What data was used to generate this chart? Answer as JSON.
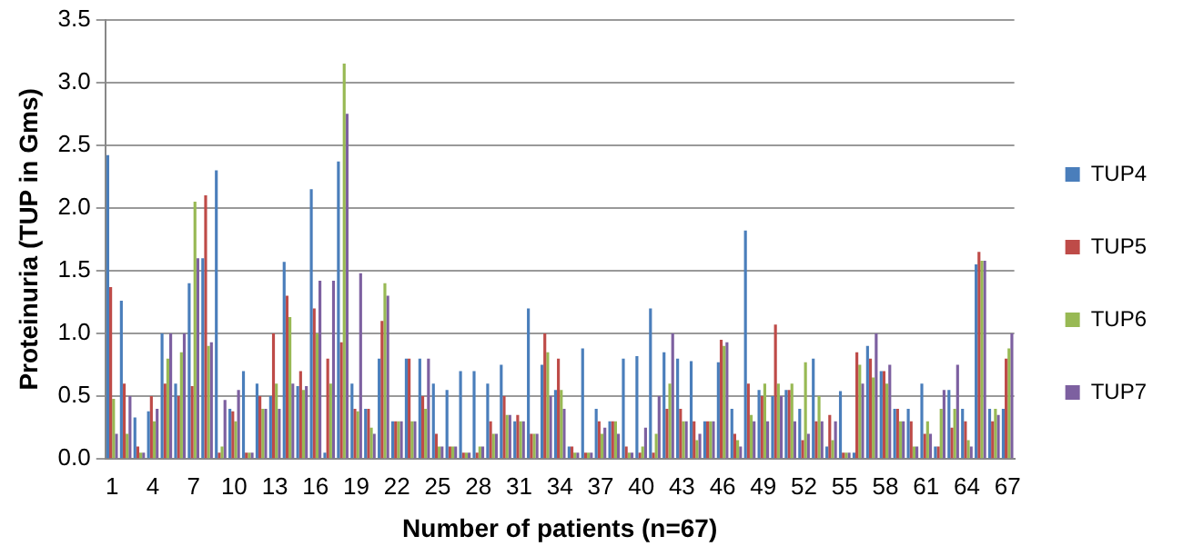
{
  "chart_data": {
    "type": "bar",
    "xlabel": "Number of patients (n=67)",
    "ylabel": "Proteinuria (TUP in Gms)",
    "categories": [
      "1",
      null,
      null,
      "4",
      null,
      null,
      "7",
      null,
      null,
      "10",
      null,
      null,
      "13",
      null,
      null,
      "16",
      null,
      null,
      "19",
      null,
      null,
      "22",
      null,
      null,
      "25",
      null,
      null,
      "28",
      null,
      null,
      "31",
      null,
      null,
      "34",
      null,
      null,
      "37",
      null,
      null,
      "40",
      null,
      null,
      "43",
      null,
      null,
      "46",
      null,
      null,
      "49",
      null,
      null,
      "52",
      null,
      null,
      "55",
      null,
      null,
      "58",
      null,
      null,
      "61",
      null,
      null,
      "64",
      null,
      null,
      "67"
    ],
    "series": [
      {
        "name": "TUP4",
        "color": "#4a7ebb",
        "values": [
          2.42,
          1.26,
          0.33,
          0.38,
          1.0,
          0.6,
          1.4,
          1.6,
          2.3,
          0.4,
          0.7,
          0.6,
          0.5,
          1.57,
          0.58,
          2.15,
          0.05,
          2.37,
          0.6,
          0.4,
          0.8,
          0.3,
          0.8,
          0.8,
          0.6,
          0.55,
          0.7,
          0.7,
          0.6,
          0.75,
          0.3,
          1.2,
          0.75,
          0.55,
          0.1,
          0.88,
          0.4,
          0.3,
          0.8,
          0.82,
          1.2,
          0.85,
          0.8,
          0.78,
          0.3,
          0.77,
          0.4,
          1.82,
          0.55,
          0.5,
          0.55,
          0.4,
          0.8,
          0.1,
          0.54,
          0.05,
          0.9,
          0.7,
          0.4,
          0.4,
          0.6,
          0.1,
          0.55,
          0.4,
          1.55,
          0.4,
          0.4
        ]
      },
      {
        "name": "TUP5",
        "color": "#be4b48",
        "values": [
          1.37,
          0.6,
          0.1,
          0.5,
          0.6,
          0.5,
          0.58,
          2.1,
          0.05,
          0.38,
          0.05,
          0.5,
          1.0,
          1.3,
          0.7,
          1.2,
          0.8,
          0.93,
          0.4,
          0.4,
          1.1,
          0.3,
          0.8,
          0.5,
          0.2,
          0.1,
          0.05,
          0.05,
          0.3,
          0.5,
          0.35,
          0.2,
          1.0,
          0.8,
          0.1,
          0.05,
          0.3,
          0.3,
          0.1,
          0.05,
          0.05,
          0.4,
          0.4,
          0.3,
          0.3,
          0.95,
          0.2,
          0.6,
          0.5,
          1.07,
          0.55,
          0.15,
          0.3,
          0.35,
          0.05,
          0.85,
          0.8,
          0.7,
          0.4,
          0.3,
          0.2,
          0.1,
          0.25,
          0.3,
          1.65,
          0.3,
          0.8
        ]
      },
      {
        "name": "TUP6",
        "color": "#98b954",
        "values": [
          0.48,
          0.2,
          0.05,
          0.3,
          0.8,
          0.85,
          2.05,
          0.9,
          0.1,
          0.3,
          0.05,
          0.4,
          0.6,
          1.13,
          0.55,
          1.0,
          0.6,
          3.15,
          0.38,
          0.25,
          1.4,
          0.3,
          0.3,
          0.4,
          0.1,
          0.1,
          0.05,
          0.1,
          0.2,
          0.35,
          0.3,
          0.2,
          0.85,
          0.55,
          0.05,
          0.05,
          0.2,
          0.3,
          0.05,
          0.1,
          0.2,
          0.6,
          0.3,
          0.15,
          0.3,
          0.9,
          0.15,
          0.35,
          0.6,
          0.6,
          0.6,
          0.77,
          0.5,
          0.15,
          0.05,
          0.75,
          0.65,
          0.6,
          0.3,
          0.1,
          0.3,
          0.4,
          0.4,
          0.15,
          1.58,
          0.4,
          0.88
        ]
      },
      {
        "name": "TUP7",
        "color": "#7d60a0",
        "values": [
          0.2,
          0.5,
          0.05,
          0.4,
          1.0,
          1.0,
          1.6,
          0.93,
          0.47,
          0.55,
          0.05,
          0.4,
          0.4,
          0.6,
          0.58,
          1.42,
          1.42,
          2.75,
          1.48,
          0.2,
          1.3,
          0.3,
          0.3,
          0.8,
          0.1,
          0.1,
          0.05,
          0.1,
          0.2,
          0.35,
          0.3,
          0.2,
          0.5,
          0.4,
          0.05,
          0.05,
          0.25,
          0.2,
          0.05,
          0.25,
          0.5,
          1.0,
          0.3,
          0.2,
          0.3,
          0.93,
          0.1,
          0.3,
          0.3,
          0.5,
          0.3,
          0.2,
          0.3,
          0.3,
          0.05,
          0.6,
          1.0,
          0.75,
          0.3,
          0.1,
          0.2,
          0.55,
          0.75,
          0.1,
          1.58,
          0.35,
          1.0
        ]
      }
    ],
    "ylim": [
      0,
      3.5
    ],
    "yticks": [
      {
        "value": 0,
        "label": "0.0"
      },
      {
        "value": 0.5,
        "label": "0.5"
      },
      {
        "value": 1,
        "label": "1.0"
      },
      {
        "value": 1.5,
        "label": "1.5"
      },
      {
        "value": 2,
        "label": "2.0"
      },
      {
        "value": 2.5,
        "label": "2.5"
      },
      {
        "value": 3,
        "label": "3.0"
      },
      {
        "value": 3.5,
        "label": "3.5"
      }
    ],
    "grid": "y",
    "legend": "right"
  }
}
